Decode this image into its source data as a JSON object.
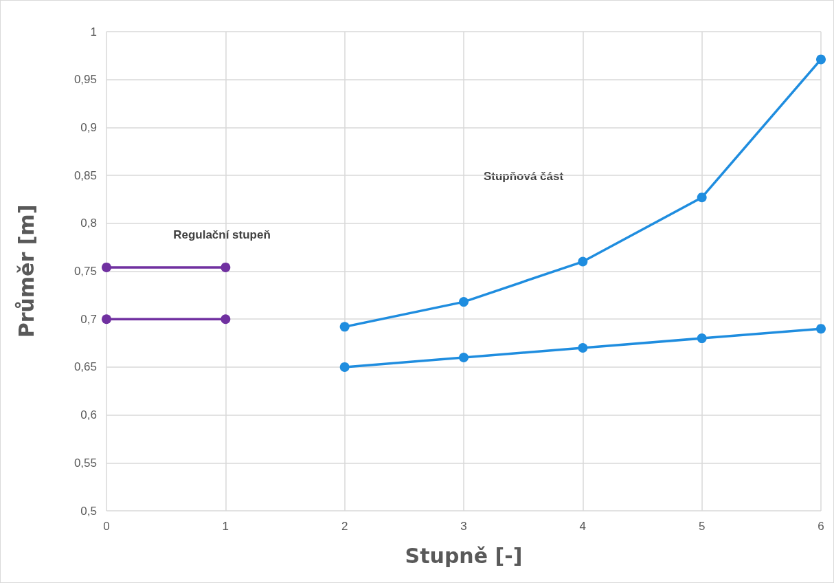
{
  "chart_data": {
    "type": "line",
    "xlabel": "Stupně [-]",
    "ylabel": "Průměr [m]",
    "xlim": [
      0,
      6
    ],
    "xticks": [
      0,
      1,
      2,
      3,
      4,
      5,
      6
    ],
    "ylim": [
      0.5,
      1
    ],
    "yticks": [
      {
        "value": 0.5,
        "label": "0,5"
      },
      {
        "value": 0.55,
        "label": "0,55"
      },
      {
        "value": 0.6,
        "label": "0,6"
      },
      {
        "value": 0.65,
        "label": "0,65"
      },
      {
        "value": 0.7,
        "label": "0,7"
      },
      {
        "value": 0.75,
        "label": "0,75"
      },
      {
        "value": 0.8,
        "label": "0,8"
      },
      {
        "value": 0.85,
        "label": "0,85"
      },
      {
        "value": 0.9,
        "label": "0,9"
      },
      {
        "value": 0.95,
        "label": "0,95"
      },
      {
        "value": 1,
        "label": "1"
      }
    ],
    "grid": true,
    "marker": "circle",
    "line_style": "solid",
    "series": [
      {
        "color": "#7030a0",
        "x": [
          0,
          1
        ],
        "values": [
          0.754,
          0.754
        ]
      },
      {
        "color": "#7030a0",
        "x": [
          0,
          1
        ],
        "values": [
          0.7,
          0.7
        ]
      },
      {
        "color": "#1f8ddf",
        "x": [
          2,
          3,
          4,
          5,
          6
        ],
        "values": [
          0.692,
          0.718,
          0.76,
          0.827,
          0.971
        ]
      },
      {
        "color": "#1f8ddf",
        "x": [
          2,
          3,
          4,
          5,
          6
        ],
        "values": [
          0.65,
          0.66,
          0.67,
          0.68,
          0.69
        ]
      }
    ],
    "annotations": [
      "Regulační stupeň",
      "Stupňová část"
    ]
  }
}
